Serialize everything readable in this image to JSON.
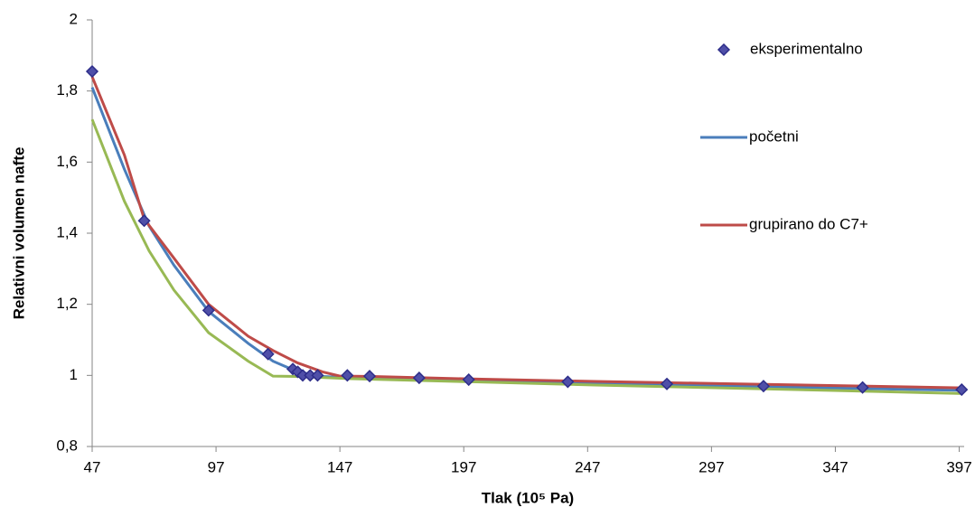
{
  "chart_data": {
    "type": "line",
    "x_label": "Tlak (10⁵ Pa)",
    "y_label": "Relativni volumen nafte",
    "xlim": [
      47,
      399
    ],
    "ylim": [
      0.8,
      2
    ],
    "xticks": [
      47,
      97,
      147,
      197,
      247,
      297,
      347,
      397
    ],
    "yticks": [
      {
        "value": 0.8,
        "label": "0,8"
      },
      1,
      {
        "value": 1.2,
        "label": "1,2"
      },
      {
        "value": 1.4,
        "label": "1,4"
      },
      {
        "value": 1.6,
        "label": "1,6"
      },
      {
        "value": 1.8,
        "label": "1,8"
      },
      2
    ],
    "grid": false,
    "legend": "right",
    "series": [
      {
        "name": "eksperimentalno",
        "style": "markers",
        "color": "#2e2e8a",
        "x": [
          47,
          68,
          94,
          118,
          128,
          130,
          132,
          135,
          138,
          150,
          159,
          179,
          199,
          239,
          279,
          318,
          358,
          398
        ],
        "values": [
          1.855,
          1.435,
          1.183,
          1.06,
          1.018,
          1.01,
          1.0,
          1.0,
          1.0,
          1.0,
          0.998,
          0.993,
          0.988,
          0.982,
          0.976,
          0.97,
          0.966,
          0.96
        ]
      },
      {
        "name": "početni",
        "style": "line",
        "color": "#4a7ebb",
        "x": [
          47,
          60,
          70,
          80,
          94,
          110,
          120,
          130,
          140,
          150,
          200,
          250,
          300,
          350,
          398
        ],
        "values": [
          1.81,
          1.58,
          1.42,
          1.31,
          1.18,
          1.09,
          1.04,
          1.01,
          0.997,
          0.994,
          0.985,
          0.978,
          0.971,
          0.964,
          0.958
        ]
      },
      {
        "name": "grupirano do C7+",
        "style": "line",
        "color": "#be4b48",
        "x": [
          47,
          60,
          68,
          80,
          94,
          110,
          120,
          130,
          140,
          147,
          160,
          200,
          250,
          300,
          350,
          398
        ],
        "values": [
          1.84,
          1.62,
          1.44,
          1.33,
          1.2,
          1.11,
          1.07,
          1.035,
          1.01,
          0.998,
          0.997,
          0.99,
          0.983,
          0.977,
          0.971,
          0.965
        ]
      },
      {
        "style": "line",
        "color": "#98b954",
        "x": [
          47,
          60,
          70,
          80,
          94,
          110,
          120,
          130,
          150,
          200,
          250,
          300,
          350,
          398
        ],
        "values": [
          1.72,
          1.49,
          1.35,
          1.24,
          1.12,
          1.04,
          0.998,
          0.997,
          0.991,
          0.982,
          0.973,
          0.965,
          0.957,
          0.949
        ]
      }
    ]
  }
}
